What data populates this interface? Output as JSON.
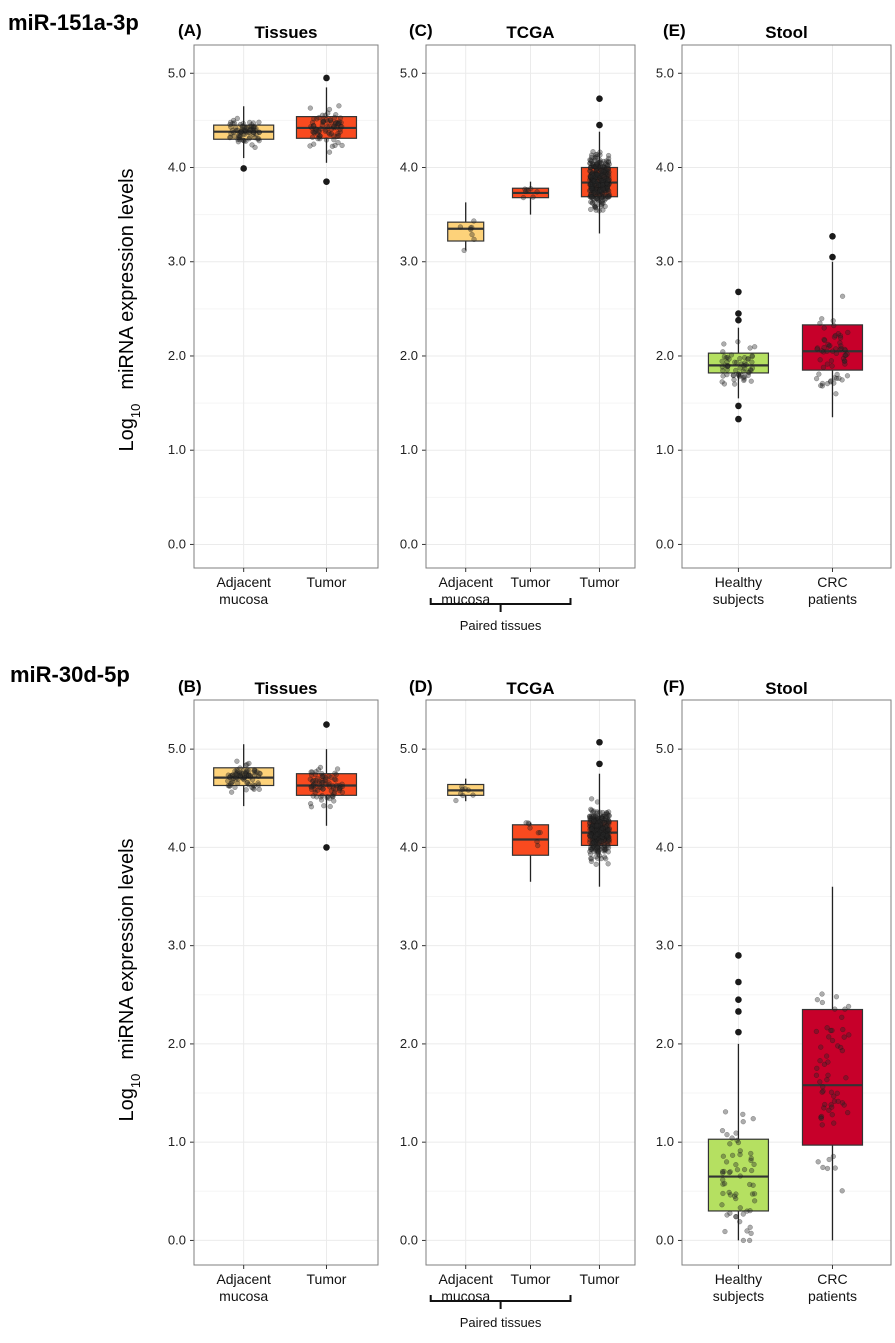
{
  "figure": {
    "rows": [
      {
        "mirna": "miR-151a-3p",
        "ylabel_main": "Log",
        "ylabel_sub": "10",
        "ylabel_rest": "miRNA expression levels"
      },
      {
        "mirna": "miR-30d-5p",
        "ylabel_main": "Log",
        "ylabel_sub": "10",
        "ylabel_rest": "miRNA expression levels"
      }
    ],
    "paired_label": "Paired tissues"
  },
  "colors": {
    "adjacent": "#fdd27a",
    "tumor": "#f94a1f",
    "healthy": "#b5e061",
    "crc": "#c7002a",
    "grid": "#ebebeb",
    "frame": "#7f7f7f"
  },
  "chart_data": [
    {
      "type": "box",
      "panel": "(A)",
      "title": "Tissues",
      "ylim": [
        -0.25,
        5.3
      ],
      "yticks": [
        "0.0",
        "1.0",
        "2.0",
        "3.0",
        "4.0",
        "5.0"
      ],
      "grid": true,
      "categories": [
        [
          "Adjacent",
          "mucosa"
        ],
        [
          "Tumor"
        ]
      ],
      "colors": [
        "adjacent",
        "tumor"
      ],
      "boxes": [
        {
          "min": 4.1,
          "q1": 4.3,
          "median": 4.38,
          "q3": 4.45,
          "max": 4.65,
          "outliers": [
            3.99
          ]
        },
        {
          "min": 4.05,
          "q1": 4.31,
          "median": 4.42,
          "q3": 4.54,
          "max": 4.85,
          "outliers": [
            3.85,
            4.95
          ]
        }
      ],
      "points_n": [
        80,
        80
      ]
    },
    {
      "type": "box",
      "panel": "(C)",
      "title": "TCGA",
      "ylim": [
        -0.25,
        5.3
      ],
      "yticks": [
        "0.0",
        "1.0",
        "2.0",
        "3.0",
        "4.0",
        "5.0"
      ],
      "grid": true,
      "categories": [
        [
          "Adjacent",
          "mucosa"
        ],
        [
          "Tumor"
        ],
        [
          "Tumor"
        ]
      ],
      "colors": [
        "adjacent",
        "tumor",
        "tumor"
      ],
      "paired_bracket": [
        0,
        2
      ],
      "boxes": [
        {
          "min": 3.12,
          "q1": 3.22,
          "median": 3.35,
          "q3": 3.42,
          "max": 3.63,
          "outliers": []
        },
        {
          "min": 3.5,
          "q1": 3.68,
          "median": 3.73,
          "q3": 3.78,
          "max": 3.85,
          "outliers": []
        },
        {
          "min": 3.3,
          "q1": 3.69,
          "median": 3.84,
          "q3": 4.0,
          "max": 4.38,
          "outliers": [
            4.45,
            4.73
          ]
        }
      ],
      "points_n": [
        8,
        8,
        350
      ]
    },
    {
      "type": "box",
      "panel": "(E)",
      "title": "Stool",
      "ylim": [
        -0.25,
        5.3
      ],
      "yticks": [
        "0.0",
        "1.0",
        "2.0",
        "3.0",
        "4.0",
        "5.0"
      ],
      "grid": true,
      "categories": [
        [
          "Healthy",
          "subjects"
        ],
        [
          "CRC",
          "patients"
        ]
      ],
      "colors": [
        "healthy",
        "crc"
      ],
      "boxes": [
        {
          "min": 1.55,
          "q1": 1.82,
          "median": 1.9,
          "q3": 2.03,
          "max": 2.3,
          "outliers": [
            1.33,
            1.47,
            2.38,
            2.45,
            2.68
          ]
        },
        {
          "min": 1.35,
          "q1": 1.85,
          "median": 2.05,
          "q3": 2.33,
          "max": 3.0,
          "outliers": [
            3.05,
            3.27
          ]
        }
      ],
      "points_n": [
        60,
        60
      ]
    },
    {
      "type": "box",
      "panel": "(B)",
      "title": "Tissues",
      "ylim": [
        -0.25,
        5.5
      ],
      "yticks": [
        "0.0",
        "1.0",
        "2.0",
        "3.0",
        "4.0",
        "5.0"
      ],
      "grid": true,
      "categories": [
        [
          "Adjacent",
          "mucosa"
        ],
        [
          "Tumor"
        ]
      ],
      "colors": [
        "adjacent",
        "tumor"
      ],
      "boxes": [
        {
          "min": 4.42,
          "q1": 4.63,
          "median": 4.71,
          "q3": 4.81,
          "max": 5.05,
          "outliers": []
        },
        {
          "min": 4.22,
          "q1": 4.53,
          "median": 4.63,
          "q3": 4.75,
          "max": 5.0,
          "outliers": [
            4.0,
            5.25
          ]
        }
      ],
      "points_n": [
        80,
        80
      ]
    },
    {
      "type": "box",
      "panel": "(D)",
      "title": "TCGA",
      "ylim": [
        -0.25,
        5.5
      ],
      "yticks": [
        "0.0",
        "1.0",
        "2.0",
        "3.0",
        "4.0",
        "5.0"
      ],
      "grid": true,
      "categories": [
        [
          "Adjacent",
          "mucosa"
        ],
        [
          "Tumor"
        ],
        [
          "Tumor"
        ]
      ],
      "colors": [
        "adjacent",
        "tumor",
        "tumor"
      ],
      "paired_bracket": [
        0,
        2
      ],
      "boxes": [
        {
          "min": 4.47,
          "q1": 4.53,
          "median": 4.58,
          "q3": 4.64,
          "max": 4.7,
          "outliers": []
        },
        {
          "min": 3.65,
          "q1": 3.92,
          "median": 4.08,
          "q3": 4.23,
          "max": 4.25,
          "outliers": []
        },
        {
          "min": 3.6,
          "q1": 4.02,
          "median": 4.15,
          "q3": 4.27,
          "max": 4.75,
          "outliers": [
            4.85,
            5.07
          ]
        }
      ],
      "points_n": [
        8,
        8,
        350
      ]
    },
    {
      "type": "box",
      "panel": "(F)",
      "title": "Stool",
      "ylim": [
        -0.25,
        5.5
      ],
      "yticks": [
        "0.0",
        "1.0",
        "2.0",
        "3.0",
        "4.0",
        "5.0"
      ],
      "grid": true,
      "categories": [
        [
          "Healthy",
          "subjects"
        ],
        [
          "CRC",
          "patients"
        ]
      ],
      "colors": [
        "healthy",
        "crc"
      ],
      "boxes": [
        {
          "min": 0.0,
          "q1": 0.3,
          "median": 0.65,
          "q3": 1.03,
          "max": 2.0,
          "outliers": [
            2.12,
            2.33,
            2.45,
            2.63,
            2.9
          ]
        },
        {
          "min": 0.0,
          "q1": 0.97,
          "median": 1.58,
          "q3": 2.35,
          "max": 3.6,
          "outliers": []
        }
      ],
      "points_n": [
        60,
        60
      ]
    }
  ]
}
